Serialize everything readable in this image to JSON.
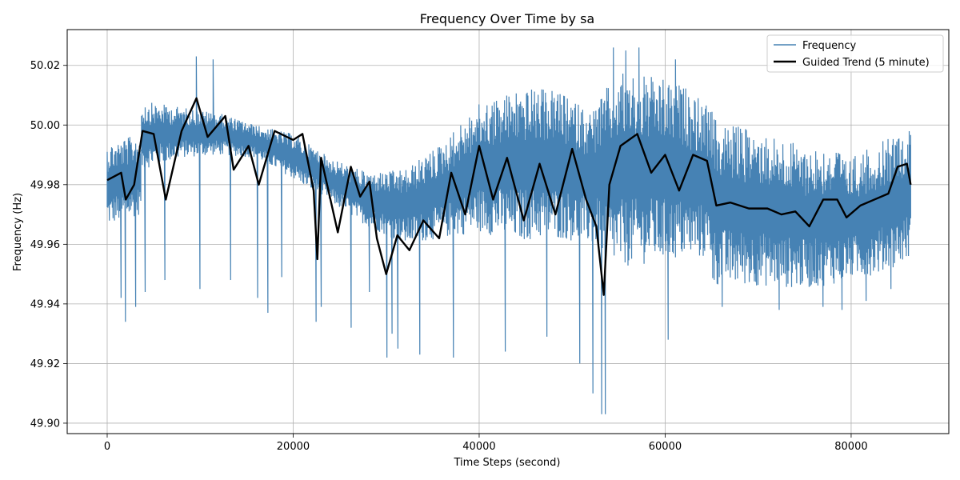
{
  "chart_data": {
    "type": "line",
    "title": "Frequency Over Time by sa",
    "xlabel": "Time Steps (second)",
    "ylabel": "Frequency (Hz)",
    "xlim": [
      -4300,
      90500
    ],
    "ylim": [
      49.8965,
      50.032
    ],
    "xticks": [
      0,
      20000,
      40000,
      60000,
      80000
    ],
    "xtick_labels": [
      "0",
      "20000",
      "40000",
      "60000",
      "80000"
    ],
    "yticks": [
      49.9,
      49.92,
      49.94,
      49.96,
      49.98,
      50.0,
      50.02
    ],
    "ytick_labels": [
      "49.90",
      "49.92",
      "49.94",
      "49.96",
      "49.98",
      "50.00",
      "50.02"
    ],
    "grid": true,
    "legend_position": "top-right",
    "series": [
      {
        "name": "Frequency",
        "color": "#4682b4",
        "style": "thin-noisy",
        "x_range": [
          0,
          86400
        ],
        "envelope": [
          {
            "x": 0,
            "low": 49.966,
            "high": 49.994
          },
          {
            "x": 3600,
            "low": 49.97,
            "high": 49.997
          },
          {
            "x": 3700,
            "low": 49.985,
            "high": 50.008
          },
          {
            "x": 8000,
            "low": 49.989,
            "high": 50.006
          },
          {
            "x": 12000,
            "low": 49.99,
            "high": 50.004
          },
          {
            "x": 16000,
            "low": 49.989,
            "high": 50.0
          },
          {
            "x": 20000,
            "low": 49.982,
            "high": 49.997
          },
          {
            "x": 24000,
            "low": 49.974,
            "high": 49.989
          },
          {
            "x": 28000,
            "low": 49.966,
            "high": 49.984
          },
          {
            "x": 32000,
            "low": 49.96,
            "high": 49.985
          },
          {
            "x": 36000,
            "low": 49.962,
            "high": 49.994
          },
          {
            "x": 40000,
            "low": 49.964,
            "high": 50.007
          },
          {
            "x": 44000,
            "low": 49.961,
            "high": 50.012
          },
          {
            "x": 48000,
            "low": 49.962,
            "high": 50.012
          },
          {
            "x": 52000,
            "low": 49.96,
            "high": 50.005
          },
          {
            "x": 55000,
            "low": 49.952,
            "high": 50.018
          },
          {
            "x": 59000,
            "low": 49.954,
            "high": 50.016
          },
          {
            "x": 62000,
            "low": 49.955,
            "high": 50.013
          },
          {
            "x": 65000,
            "low": 49.955,
            "high": 50.006
          },
          {
            "x": 65100,
            "low": 49.946,
            "high": 50.002
          },
          {
            "x": 70000,
            "low": 49.946,
            "high": 49.998
          },
          {
            "x": 75000,
            "low": 49.945,
            "high": 49.993
          },
          {
            "x": 79000,
            "low": 49.947,
            "high": 49.992
          },
          {
            "x": 79200,
            "low": 49.948,
            "high": 49.988
          },
          {
            "x": 83000,
            "low": 49.95,
            "high": 49.994
          },
          {
            "x": 86400,
            "low": 49.955,
            "high": 49.999
          }
        ],
        "spikes": [
          {
            "x": 1500,
            "y": 49.942
          },
          {
            "x": 2000,
            "y": 49.934
          },
          {
            "x": 3100,
            "y": 49.939
          },
          {
            "x": 4100,
            "y": 49.944
          },
          {
            "x": 6200,
            "y": 49.948
          },
          {
            "x": 9600,
            "y": 50.023
          },
          {
            "x": 10000,
            "y": 49.945
          },
          {
            "x": 11400,
            "y": 50.022
          },
          {
            "x": 13300,
            "y": 49.948
          },
          {
            "x": 16200,
            "y": 49.942
          },
          {
            "x": 17300,
            "y": 49.937
          },
          {
            "x": 18800,
            "y": 49.949
          },
          {
            "x": 22500,
            "y": 49.934
          },
          {
            "x": 23000,
            "y": 49.939
          },
          {
            "x": 26200,
            "y": 49.932
          },
          {
            "x": 28200,
            "y": 49.944
          },
          {
            "x": 30100,
            "y": 49.922
          },
          {
            "x": 30600,
            "y": 49.93
          },
          {
            "x": 31300,
            "y": 49.925
          },
          {
            "x": 33600,
            "y": 49.923
          },
          {
            "x": 37200,
            "y": 49.922
          },
          {
            "x": 42800,
            "y": 49.924
          },
          {
            "x": 47300,
            "y": 49.929
          },
          {
            "x": 50800,
            "y": 49.92
          },
          {
            "x": 52200,
            "y": 49.91
          },
          {
            "x": 53200,
            "y": 49.903
          },
          {
            "x": 53600,
            "y": 49.903
          },
          {
            "x": 54400,
            "y": 50.026
          },
          {
            "x": 55800,
            "y": 50.025
          },
          {
            "x": 57200,
            "y": 50.026
          },
          {
            "x": 60300,
            "y": 49.928
          },
          {
            "x": 61100,
            "y": 50.022
          },
          {
            "x": 66100,
            "y": 49.939
          },
          {
            "x": 72300,
            "y": 49.938
          },
          {
            "x": 77000,
            "y": 49.939
          },
          {
            "x": 79000,
            "y": 49.938
          },
          {
            "x": 81600,
            "y": 49.941
          },
          {
            "x": 84300,
            "y": 49.945
          }
        ]
      },
      {
        "name": "Guided Trend (5 minute)",
        "color": "#000000",
        "style": "thick",
        "anchors": [
          {
            "x": 0,
            "y": 49.9815
          },
          {
            "x": 1500,
            "y": 49.984
          },
          {
            "x": 2000,
            "y": 49.975
          },
          {
            "x": 2900,
            "y": 49.98
          },
          {
            "x": 3800,
            "y": 49.998
          },
          {
            "x": 5000,
            "y": 49.997
          },
          {
            "x": 6300,
            "y": 49.975
          },
          {
            "x": 8000,
            "y": 49.998
          },
          {
            "x": 9600,
            "y": 50.009
          },
          {
            "x": 10800,
            "y": 49.996
          },
          {
            "x": 12700,
            "y": 50.003
          },
          {
            "x": 13600,
            "y": 49.985
          },
          {
            "x": 15200,
            "y": 49.993
          },
          {
            "x": 16300,
            "y": 49.98
          },
          {
            "x": 18000,
            "y": 49.998
          },
          {
            "x": 20000,
            "y": 49.995
          },
          {
            "x": 21000,
            "y": 49.997
          },
          {
            "x": 22200,
            "y": 49.978
          },
          {
            "x": 22600,
            "y": 49.955
          },
          {
            "x": 23000,
            "y": 49.989
          },
          {
            "x": 24800,
            "y": 49.964
          },
          {
            "x": 26200,
            "y": 49.986
          },
          {
            "x": 27200,
            "y": 49.976
          },
          {
            "x": 28200,
            "y": 49.981
          },
          {
            "x": 29000,
            "y": 49.962
          },
          {
            "x": 30000,
            "y": 49.95
          },
          {
            "x": 31200,
            "y": 49.963
          },
          {
            "x": 32500,
            "y": 49.958
          },
          {
            "x": 34000,
            "y": 49.968
          },
          {
            "x": 35700,
            "y": 49.962
          },
          {
            "x": 37000,
            "y": 49.984
          },
          {
            "x": 38500,
            "y": 49.97
          },
          {
            "x": 40000,
            "y": 49.993
          },
          {
            "x": 41500,
            "y": 49.975
          },
          {
            "x": 43000,
            "y": 49.989
          },
          {
            "x": 44800,
            "y": 49.968
          },
          {
            "x": 46500,
            "y": 49.987
          },
          {
            "x": 48200,
            "y": 49.97
          },
          {
            "x": 50000,
            "y": 49.992
          },
          {
            "x": 51500,
            "y": 49.975
          },
          {
            "x": 52600,
            "y": 49.966
          },
          {
            "x": 53400,
            "y": 49.943
          },
          {
            "x": 54000,
            "y": 49.98
          },
          {
            "x": 55200,
            "y": 49.993
          },
          {
            "x": 57000,
            "y": 49.997
          },
          {
            "x": 58500,
            "y": 49.984
          },
          {
            "x": 60000,
            "y": 49.99
          },
          {
            "x": 61500,
            "y": 49.978
          },
          {
            "x": 63000,
            "y": 49.99
          },
          {
            "x": 64500,
            "y": 49.988
          },
          {
            "x": 65500,
            "y": 49.973
          },
          {
            "x": 67000,
            "y": 49.974
          },
          {
            "x": 69000,
            "y": 49.972
          },
          {
            "x": 71000,
            "y": 49.972
          },
          {
            "x": 72500,
            "y": 49.97
          },
          {
            "x": 74000,
            "y": 49.971
          },
          {
            "x": 75500,
            "y": 49.966
          },
          {
            "x": 77000,
            "y": 49.975
          },
          {
            "x": 78500,
            "y": 49.975
          },
          {
            "x": 79500,
            "y": 49.969
          },
          {
            "x": 81000,
            "y": 49.973
          },
          {
            "x": 82500,
            "y": 49.975
          },
          {
            "x": 84000,
            "y": 49.977
          },
          {
            "x": 85000,
            "y": 49.986
          },
          {
            "x": 86000,
            "y": 49.987
          },
          {
            "x": 86400,
            "y": 49.98
          }
        ]
      }
    ]
  }
}
